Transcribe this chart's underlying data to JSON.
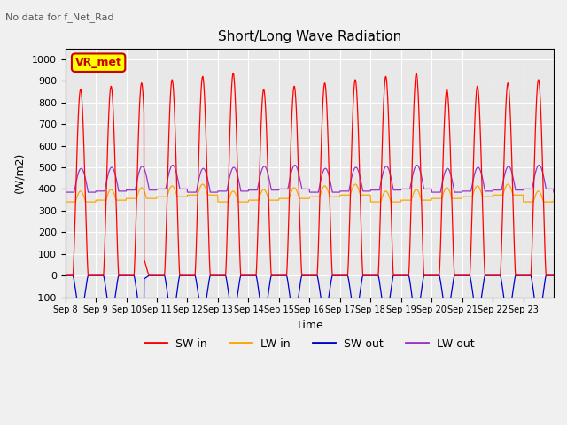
{
  "title": "Short/Long Wave Radiation",
  "subtitle": "No data for f_Net_Rad",
  "ylabel": "(W/m2)",
  "xlabel": "Time",
  "ylim": [
    -100,
    1050
  ],
  "yticks": [
    -100,
    0,
    100,
    200,
    300,
    400,
    500,
    600,
    700,
    800,
    900,
    1000
  ],
  "xtick_labels": [
    "Sep 8",
    "Sep 9",
    "Sep 10",
    "Sep 11",
    "Sep 12",
    "Sep 13",
    "Sep 14",
    "Sep 15",
    "Sep 16",
    "Sep 17",
    "Sep 18",
    "Sep 19",
    "Sep 20",
    "Sep 21",
    "Sep 22",
    "Sep 23"
  ],
  "legend_labels": [
    "SW in",
    "LW in",
    "SW out",
    "LW out"
  ],
  "legend_colors": [
    "#ff0000",
    "#ffa500",
    "#0000cc",
    "#9933cc"
  ],
  "colors": {
    "SW_in": "#ff0000",
    "LW_in": "#ffa500",
    "SW_out": "#0000cc",
    "LW_out": "#9933cc"
  },
  "box_label": "VR_met",
  "box_color": "#ffff00",
  "box_border": "#cc0000",
  "n_days": 16,
  "background_color": "#e8e8e8",
  "grid_color": "#ffffff"
}
